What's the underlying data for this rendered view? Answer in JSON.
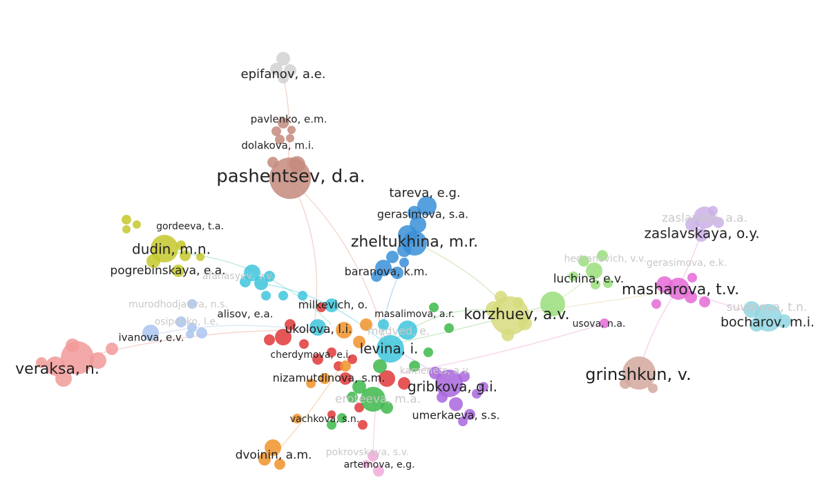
{
  "nodes": [
    {
      "label": "epifanov, a.e."
    },
    {
      "label": "pavlenko, e.m."
    },
    {
      "label": "dolakova, m.i."
    },
    {
      "label": "pashentsev, d.a."
    },
    {
      "label": "tareva, e.g."
    },
    {
      "label": "gerasimova, s.a."
    },
    {
      "label": "zheltukhina, m.r."
    },
    {
      "label": "baranova, k.m."
    },
    {
      "label": "gordeeva, t.a."
    },
    {
      "label": "dudin, m.n."
    },
    {
      "label": "pogrebinskaya, e.a."
    },
    {
      "label": "milkevich, o."
    },
    {
      "label": "alisov, e.a."
    },
    {
      "label": "ivanova, e.v."
    },
    {
      "label": "masalimova, a.r."
    },
    {
      "label": "korzhuev, a.v."
    },
    {
      "label": "ukolova, l.i."
    },
    {
      "label": "levina, i."
    },
    {
      "label": "cherdymova, e.i."
    },
    {
      "label": "veraksa, n."
    },
    {
      "label": "nizamutdinova, s.m."
    },
    {
      "label": "gribkova, g.i."
    },
    {
      "label": "umerkaeva, s.s."
    },
    {
      "label": "vachkova, s.n."
    },
    {
      "label": "dvoinin, a.m."
    },
    {
      "label": "artemova, e.g."
    },
    {
      "label": "zaslavskaya, o.y."
    },
    {
      "label": "masharova, t.v."
    },
    {
      "label": "bocharov, m.i."
    },
    {
      "label": "grinshkun, v."
    },
    {
      "label": "usova, n.a."
    },
    {
      "label": "luchina, e.v."
    },
    {
      "label": "zaslavsky, a.a."
    },
    {
      "label": "hedranovich, v.v."
    },
    {
      "label": "gerasimova, e.k."
    },
    {
      "label": "suvorova, t.n."
    },
    {
      "label": "medved, e."
    },
    {
      "label": "kamenets, a.v."
    },
    {
      "label": "eroteeva, m.a."
    },
    {
      "label": "pokrovskaya, s.v."
    },
    {
      "label": "murodhodjaeva, n.s."
    },
    {
      "label": "osipenko, l.e."
    },
    {
      "label": "afanasyev, v.v."
    }
  ]
}
